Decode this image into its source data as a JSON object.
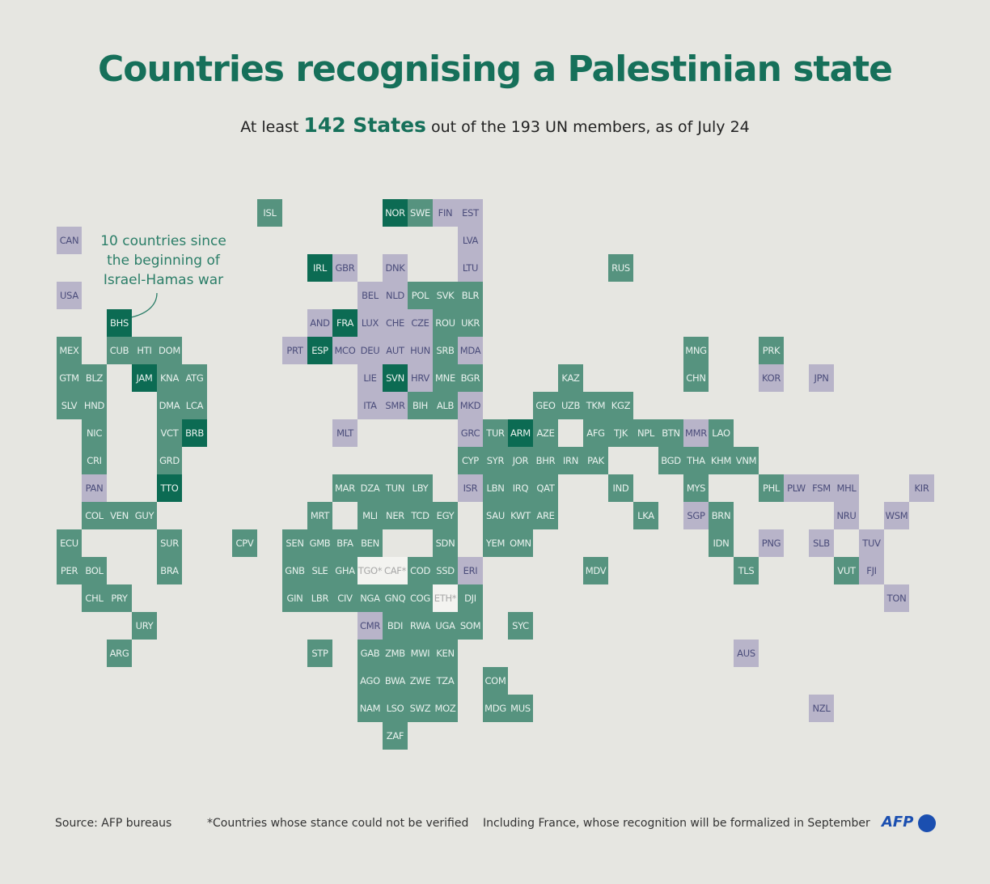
{
  "title": "Countries recognising a Palestinian state",
  "subtitle": {
    "prefix": "At least",
    "highlight": "142 States",
    "suffix": "out of the 193 UN members, as of July 24"
  },
  "annotation": "10 countries since the beginning of Israel-Hamas war",
  "footer": {
    "source": "Source: AFP bureaus",
    "note": "*Countries whose stance could not be verified",
    "france_note": "Including France, whose recognition will be formalized in September",
    "logo": "AFP"
  },
  "legend_colors": {
    "recognised": "#56937f",
    "since_war": "#0c6b53",
    "not_recognised": "#b8b4c9",
    "unverified": "#f3f3f0"
  },
  "countries": [
    [
      "ISL",
      "r"
    ],
    [
      "NOR",
      "w"
    ],
    [
      "SWE",
      "r"
    ],
    [
      "FIN",
      "n"
    ],
    [
      "EST",
      "n"
    ],
    [
      "CAN",
      "n"
    ],
    [
      "LVA",
      "n"
    ],
    [
      "IRL",
      "w"
    ],
    [
      "GBR",
      "n"
    ],
    [
      "DNK",
      "n"
    ],
    [
      "LTU",
      "n"
    ],
    [
      "RUS",
      "r"
    ],
    [
      "USA",
      "n"
    ],
    [
      "BEL",
      "n"
    ],
    [
      "NLD",
      "n"
    ],
    [
      "POL",
      "r"
    ],
    [
      "SVK",
      "r"
    ],
    [
      "BLR",
      "r"
    ],
    [
      "BHS",
      "w"
    ],
    [
      "AND",
      "n"
    ],
    [
      "FRA",
      "w"
    ],
    [
      "LUX",
      "n"
    ],
    [
      "CHE",
      "n"
    ],
    [
      "CZE",
      "n"
    ],
    [
      "ROU",
      "r"
    ],
    [
      "UKR",
      "r"
    ],
    [
      "MEX",
      "r"
    ],
    [
      "CUB",
      "r"
    ],
    [
      "HTI",
      "r"
    ],
    [
      "DOM",
      "r"
    ],
    [
      "PRT",
      "n"
    ],
    [
      "ESP",
      "w"
    ],
    [
      "MCO",
      "n"
    ],
    [
      "DEU",
      "n"
    ],
    [
      "AUT",
      "n"
    ],
    [
      "HUN",
      "n"
    ],
    [
      "SRB",
      "r"
    ],
    [
      "MDA",
      "n"
    ],
    [
      "MNG",
      "r"
    ],
    [
      "PRK",
      "r"
    ],
    [
      "GTM",
      "r"
    ],
    [
      "BLZ",
      "r"
    ],
    [
      "JAM",
      "w"
    ],
    [
      "KNA",
      "r"
    ],
    [
      "ATG",
      "r"
    ],
    [
      "LIE",
      "n"
    ],
    [
      "SVN",
      "w"
    ],
    [
      "HRV",
      "n"
    ],
    [
      "MNE",
      "r"
    ],
    [
      "BGR",
      "r"
    ],
    [
      "KAZ",
      "r"
    ],
    [
      "CHN",
      "r"
    ],
    [
      "KOR",
      "n"
    ],
    [
      "JPN",
      "n"
    ],
    [
      "SLV",
      "r"
    ],
    [
      "HND",
      "r"
    ],
    [
      "DMA",
      "r"
    ],
    [
      "LCA",
      "r"
    ],
    [
      "ITA",
      "n"
    ],
    [
      "SMR",
      "n"
    ],
    [
      "BIH",
      "r"
    ],
    [
      "ALB",
      "r"
    ],
    [
      "MKD",
      "n"
    ],
    [
      "GEO",
      "r"
    ],
    [
      "UZB",
      "r"
    ],
    [
      "TKM",
      "r"
    ],
    [
      "KGZ",
      "r"
    ],
    [
      "NIC",
      "r"
    ],
    [
      "VCT",
      "r"
    ],
    [
      "BRB",
      "w"
    ],
    [
      "MLT",
      "n"
    ],
    [
      "GRC",
      "n"
    ],
    [
      "TUR",
      "r"
    ],
    [
      "ARM",
      "w"
    ],
    [
      "AZE",
      "r"
    ],
    [
      "AFG",
      "r"
    ],
    [
      "TJK",
      "r"
    ],
    [
      "NPL",
      "r"
    ],
    [
      "BTN",
      "r"
    ],
    [
      "MMR",
      "n"
    ],
    [
      "LAO",
      "r"
    ],
    [
      "CRI",
      "r"
    ],
    [
      "GRD",
      "r"
    ],
    [
      "CYP",
      "r"
    ],
    [
      "SYR",
      "r"
    ],
    [
      "JOR",
      "r"
    ],
    [
      "BHR",
      "r"
    ],
    [
      "IRN",
      "r"
    ],
    [
      "PAK",
      "r"
    ],
    [
      "BGD",
      "r"
    ],
    [
      "THA",
      "r"
    ],
    [
      "KHM",
      "r"
    ],
    [
      "VNM",
      "r"
    ],
    [
      "PAN",
      "n"
    ],
    [
      "TTO",
      "w"
    ],
    [
      "MAR",
      "r"
    ],
    [
      "DZA",
      "r"
    ],
    [
      "TUN",
      "r"
    ],
    [
      "LBY",
      "r"
    ],
    [
      "ISR",
      "n"
    ],
    [
      "LBN",
      "r"
    ],
    [
      "IRQ",
      "r"
    ],
    [
      "QAT",
      "r"
    ],
    [
      "IND",
      "r"
    ],
    [
      "MYS",
      "r"
    ],
    [
      "PHL",
      "r"
    ],
    [
      "PLW",
      "n"
    ],
    [
      "FSM",
      "n"
    ],
    [
      "MHL",
      "n"
    ],
    [
      "KIR",
      "n"
    ],
    [
      "COL",
      "r"
    ],
    [
      "VEN",
      "r"
    ],
    [
      "GUY",
      "r"
    ],
    [
      "MRT",
      "r"
    ],
    [
      "MLI",
      "r"
    ],
    [
      "NER",
      "r"
    ],
    [
      "TCD",
      "r"
    ],
    [
      "EGY",
      "r"
    ],
    [
      "SAU",
      "r"
    ],
    [
      "KWT",
      "r"
    ],
    [
      "ARE",
      "r"
    ],
    [
      "LKA",
      "r"
    ],
    [
      "SGP",
      "n"
    ],
    [
      "BRN",
      "r"
    ],
    [
      "NRU",
      "n"
    ],
    [
      "WSM",
      "n"
    ],
    [
      "ECU",
      "r"
    ],
    [
      "SUR",
      "r"
    ],
    [
      "CPV",
      "r"
    ],
    [
      "SEN",
      "r"
    ],
    [
      "GMB",
      "r"
    ],
    [
      "BFA",
      "r"
    ],
    [
      "BEN",
      "r"
    ],
    [
      "SDN",
      "r"
    ],
    [
      "YEM",
      "r"
    ],
    [
      "OMN",
      "r"
    ],
    [
      "IDN",
      "r"
    ],
    [
      "PNG",
      "n"
    ],
    [
      "SLB",
      "n"
    ],
    [
      "TUV",
      "n"
    ],
    [
      "PER",
      "r"
    ],
    [
      "BOL",
      "r"
    ],
    [
      "BRA",
      "r"
    ],
    [
      "GNB",
      "r"
    ],
    [
      "SLE",
      "r"
    ],
    [
      "GHA",
      "r"
    ],
    [
      "TGO*",
      "u"
    ],
    [
      "CAF*",
      "u"
    ],
    [
      "COD",
      "r"
    ],
    [
      "SSD",
      "r"
    ],
    [
      "ERI",
      "n"
    ],
    [
      "MDV",
      "r"
    ],
    [
      "TLS",
      "r"
    ],
    [
      "VUT",
      "r"
    ],
    [
      "FJI",
      "n"
    ],
    [
      "CHL",
      "r"
    ],
    [
      "PRY",
      "r"
    ],
    [
      "GIN",
      "r"
    ],
    [
      "LBR",
      "r"
    ],
    [
      "CIV",
      "r"
    ],
    [
      "NGA",
      "r"
    ],
    [
      "GNQ",
      "r"
    ],
    [
      "COG",
      "r"
    ],
    [
      "ETH*",
      "u"
    ],
    [
      "DJI",
      "r"
    ],
    [
      "TON",
      "n"
    ],
    [
      "URY",
      "r"
    ],
    [
      "CMR",
      "n"
    ],
    [
      "BDI",
      "r"
    ],
    [
      "RWA",
      "r"
    ],
    [
      "UGA",
      "r"
    ],
    [
      "SOM",
      "r"
    ],
    [
      "SYC",
      "r"
    ],
    [
      "ARG",
      "r"
    ],
    [
      "STP",
      "r"
    ],
    [
      "GAB",
      "r"
    ],
    [
      "ZMB",
      "r"
    ],
    [
      "MWI",
      "r"
    ],
    [
      "KEN",
      "r"
    ],
    [
      "AUS",
      "n"
    ],
    [
      "AGO",
      "r"
    ],
    [
      "BWA",
      "r"
    ],
    [
      "ZWE",
      "r"
    ],
    [
      "TZA",
      "r"
    ],
    [
      "COM",
      "r"
    ],
    [
      "NAM",
      "r"
    ],
    [
      "LSO",
      "r"
    ],
    [
      "SWZ",
      "r"
    ],
    [
      "MOZ",
      "r"
    ],
    [
      "MDG",
      "r"
    ],
    [
      "MUS",
      "r"
    ],
    [
      "NZL",
      "n"
    ],
    [
      "ZAF",
      "r"
    ]
  ]
}
